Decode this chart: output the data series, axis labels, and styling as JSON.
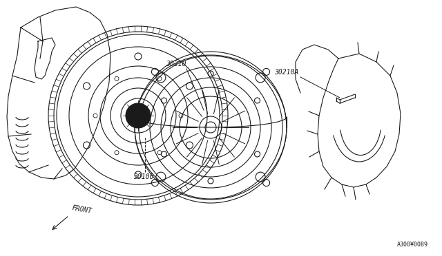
{
  "bg_color": "#ffffff",
  "line_color": "#1a1a1a",
  "line_width": 0.8,
  "label_30210": "30210",
  "label_30100": "30100",
  "label_30210A": "30210A",
  "label_front": "FRONT",
  "label_code": "A300¥0089",
  "font_size_labels": 7,
  "font_size_code": 6
}
